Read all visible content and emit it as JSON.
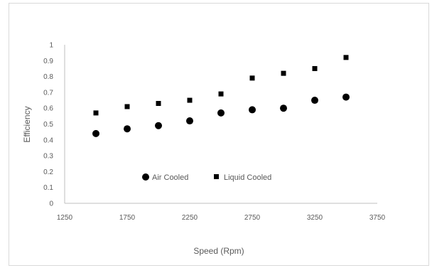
{
  "chart_data": {
    "type": "scatter",
    "xlabel": "Speed (Rpm)",
    "ylabel": "Efficiency",
    "xlim": [
      1250,
      3750
    ],
    "ylim": [
      0,
      1
    ],
    "x_ticks": [
      "1250",
      "1750",
      "2250",
      "2750",
      "3250",
      "3750"
    ],
    "y_ticks": [
      "0",
      "0.1",
      "0.2",
      "0.3",
      "0.4",
      "0.5",
      "0.6",
      "0.7",
      "0.8",
      "0.9",
      "1"
    ],
    "grid": false,
    "legend_position": "inside-lower-center",
    "series": [
      {
        "name": "Air Cooled",
        "marker": "circle",
        "color": "#000000",
        "x": [
          1500,
          1750,
          2000,
          2250,
          2500,
          2750,
          3000,
          3250,
          3500
        ],
        "y": [
          0.44,
          0.47,
          0.49,
          0.52,
          0.57,
          0.59,
          0.6,
          0.65,
          0.67
        ]
      },
      {
        "name": "Liquid Cooled",
        "marker": "square",
        "color": "#000000",
        "x": [
          1500,
          1750,
          2000,
          2250,
          2500,
          2750,
          3000,
          3250,
          3500
        ],
        "y": [
          0.57,
          0.61,
          0.63,
          0.65,
          0.69,
          0.79,
          0.82,
          0.85,
          0.92
        ]
      }
    ]
  }
}
